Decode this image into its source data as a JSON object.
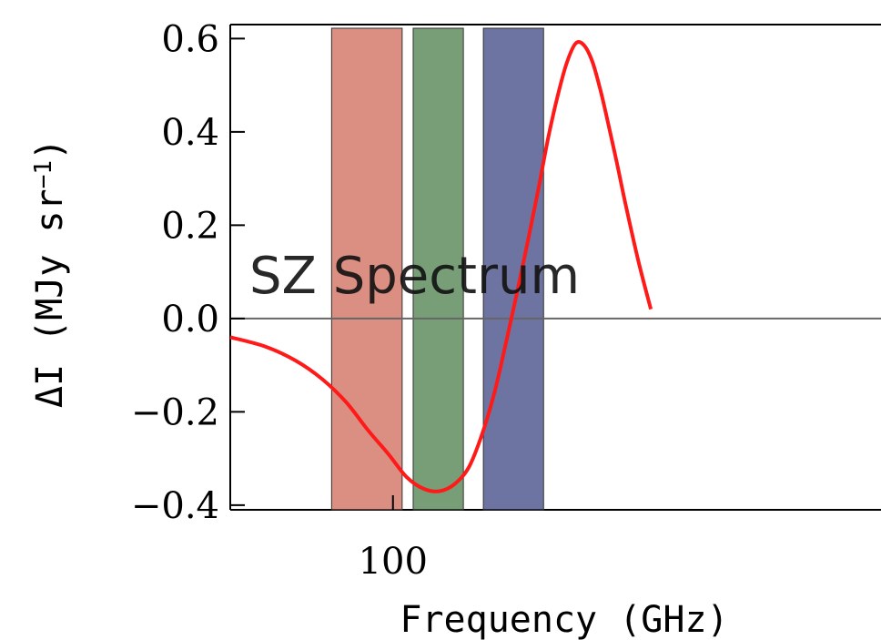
{
  "chart_data": {
    "type": "line",
    "title": "",
    "xlabel": "Frequency (GHz)",
    "ylabel_main": "ΔI (MJy sr",
    "ylabel_sup": "−1",
    "ylabel_close": ")",
    "x_scale": "log",
    "xlim": [
      50,
      800
    ],
    "ylim": [
      -0.41,
      0.63
    ],
    "x_ticks": [
      {
        "value": 100,
        "label": "100"
      }
    ],
    "y_ticks": [
      {
        "value": 0.6,
        "label": "0.6"
      },
      {
        "value": 0.4,
        "label": "0.4"
      },
      {
        "value": 0.2,
        "label": "0.2"
      },
      {
        "value": 0.0,
        "label": "0.0"
      },
      {
        "value": -0.2,
        "label": "−0.2"
      },
      {
        "value": -0.4,
        "label": "−0.4"
      }
    ],
    "zero_line": 0.0,
    "annotation": "SZ Spectrum",
    "series": [
      {
        "color": "#ff1a1a",
        "x": [
          50,
          58,
          66,
          74,
          82,
          90,
          98,
          106,
          114,
          122,
          130,
          138,
          146,
          154,
          162,
          170,
          178,
          186,
          194,
          202,
          210,
          218,
          226,
          234,
          242,
          250,
          260,
          270,
          285,
          300
        ],
        "y": [
          -0.04,
          -0.06,
          -0.09,
          -0.13,
          -0.18,
          -0.24,
          -0.29,
          -0.34,
          -0.365,
          -0.37,
          -0.355,
          -0.32,
          -0.25,
          -0.16,
          -0.05,
          0.06,
          0.17,
          0.28,
          0.39,
          0.48,
          0.55,
          0.59,
          0.585,
          0.55,
          0.49,
          0.42,
          0.33,
          0.24,
          0.12,
          0.02
        ]
      }
    ],
    "bands": [
      {
        "x_start": 77,
        "x_end": 104,
        "color": "#c8533f"
      },
      {
        "x_start": 109,
        "x_end": 135,
        "color": "#2f6a2e"
      },
      {
        "x_start": 147,
        "x_end": 190,
        "color": "#1f2a6e"
      }
    ]
  }
}
